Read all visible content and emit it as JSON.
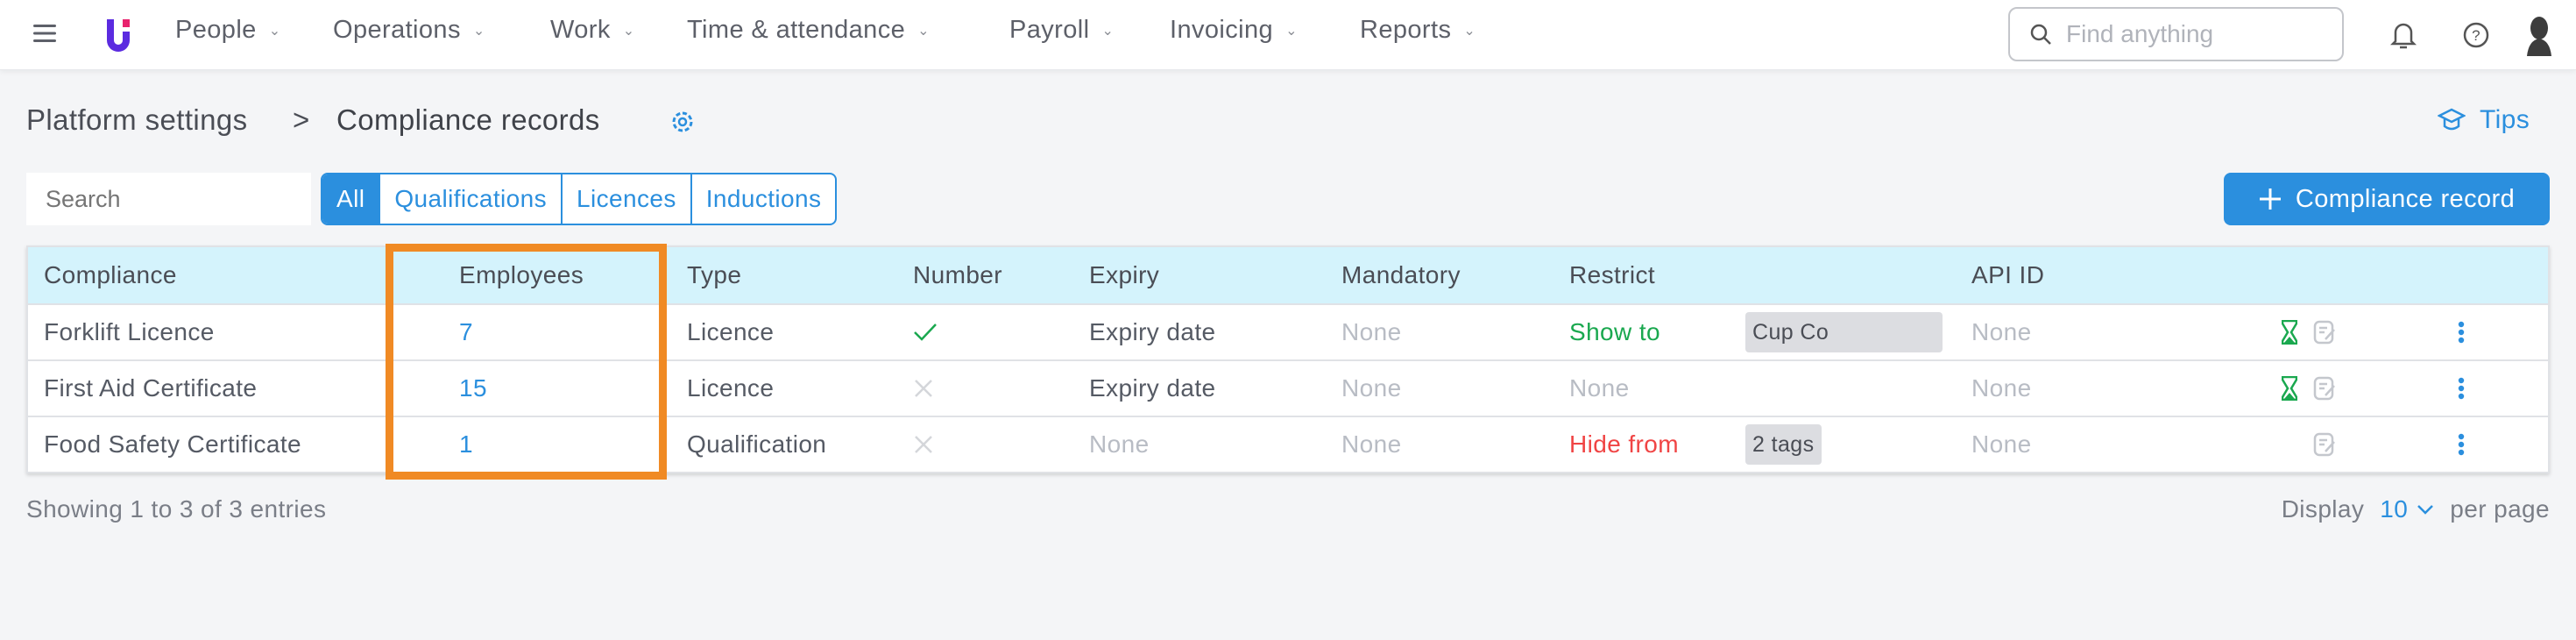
{
  "nav": {
    "menu": [
      {
        "label": "People"
      },
      {
        "label": "Operations"
      },
      {
        "label": "Work"
      },
      {
        "label": "Time & attendance"
      },
      {
        "label": "Payroll"
      },
      {
        "label": "Invoicing"
      },
      {
        "label": "Reports"
      }
    ],
    "search_placeholder": "Find anything"
  },
  "breadcrumb": {
    "parent": "Platform settings",
    "current": "Compliance records"
  },
  "tips_label": "Tips",
  "filter": {
    "search_placeholder": "Search",
    "tabs": [
      {
        "label": "All",
        "active": true
      },
      {
        "label": "Qualifications"
      },
      {
        "label": "Licences"
      },
      {
        "label": "Inductions"
      }
    ]
  },
  "add_button_label": "Compliance record",
  "table": {
    "headers": [
      "Compliance",
      "Employees",
      "Type",
      "Number",
      "Expiry",
      "Mandatory",
      "Restrict",
      "",
      "API ID"
    ],
    "rows": [
      {
        "compliance": "Forklift Licence",
        "employees": "7",
        "type": "Licence",
        "number": "check",
        "expiry": "Expiry date",
        "mandatory": "None",
        "restrict": "Show to",
        "tag": "Cup Co",
        "api_id": "None",
        "hourglass": true
      },
      {
        "compliance": "First Aid Certificate",
        "employees": "15",
        "type": "Licence",
        "number": "cross",
        "expiry": "Expiry date",
        "mandatory": "None",
        "restrict": "None",
        "tag": "",
        "api_id": "None",
        "hourglass": true
      },
      {
        "compliance": "Food Safety Certificate",
        "employees": "1",
        "type": "Qualification",
        "number": "cross",
        "expiry": "None",
        "mandatory": "None",
        "restrict": "Hide from",
        "tag": "2 tags",
        "api_id": "None",
        "hourglass": false
      }
    ]
  },
  "footer": {
    "showing": "Showing 1 to 3 of 3 entries",
    "display": "Display",
    "per_page_value": "10",
    "per_page": "per page"
  },
  "colors": {
    "accent": "#2b8fde",
    "header_bg": "#d4f3fc",
    "highlight": "#f08a24",
    "green": "#1aa84f",
    "red": "#f04444"
  }
}
